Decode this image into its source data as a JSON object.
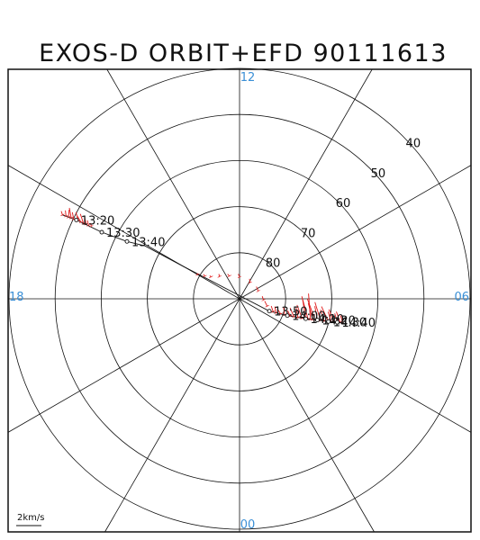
{
  "title": "EXOS-D ORBIT+EFD 90111613",
  "colors": {
    "frame": "#111111",
    "grid": "#111111",
    "mlt_label": "#3a8fd6",
    "orbit": "#111111",
    "efd_vectors": "#e01818"
  },
  "chart_data": {
    "type": "scatter",
    "title": "EXOS-D ORBIT+EFD 90111613",
    "projection": "polar",
    "radial_quantity": "invariant latitude",
    "radial_range": [
      40,
      90
    ],
    "latitude_circles": [
      40,
      50,
      60,
      70,
      80
    ],
    "latitude_labels": [
      "40",
      "50",
      "60",
      "70",
      "80"
    ],
    "mlt_labels": [
      {
        "text": "12",
        "mlt": 12
      },
      {
        "text": "06",
        "mlt": 6
      },
      {
        "text": "00",
        "mlt": 0
      },
      {
        "text": "18",
        "mlt": 18
      }
    ],
    "grid_spokes_mlt": [
      0,
      2,
      4,
      6,
      8,
      10,
      12,
      14,
      16,
      18,
      20,
      22
    ],
    "scale_label": "2km/s",
    "scale_value": 2,
    "orbit": [
      {
        "mlt": 16.31,
        "lat": 47.5
      },
      {
        "mlt": 16.28,
        "lat": 50.7
      },
      {
        "mlt": 16.28,
        "lat": 56.8
      },
      {
        "mlt": 16.2,
        "lat": 62.6
      },
      {
        "mlt": 16.05,
        "lat": 66.5
      },
      {
        "mlt": 16.0,
        "lat": 76.0
      },
      {
        "mlt": 4.5,
        "lat": 83.0
      },
      {
        "mlt": 4.71,
        "lat": 79.0
      },
      {
        "mlt": 4.88,
        "lat": 75.0
      },
      {
        "mlt": 4.98,
        "lat": 72.5
      },
      {
        "mlt": 5.04,
        "lat": 70.1
      },
      {
        "mlt": 5.1,
        "lat": 68.2
      },
      {
        "mlt": 5.15,
        "lat": 67.0
      }
    ],
    "time_marks": [
      {
        "label": "13:20",
        "mlt": 16.28,
        "lat": 50.7
      },
      {
        "label": "13:30",
        "mlt": 16.28,
        "lat": 56.8
      },
      {
        "label": "13:40",
        "mlt": 16.2,
        "lat": 62.6
      },
      {
        "label": "13:50",
        "mlt": 4.5,
        "lat": 83.0
      },
      {
        "label": "14:00",
        "mlt": 4.71,
        "lat": 79.0
      },
      {
        "label": "14:10",
        "mlt": 4.88,
        "lat": 75.0
      },
      {
        "label": "14:20",
        "mlt": 4.98,
        "lat": 72.5
      },
      {
        "label": "14:30",
        "mlt": 5.04,
        "lat": 70.1
      },
      {
        "label": "14:40",
        "mlt": 5.1,
        "lat": 68.2
      }
    ],
    "efd_vectors": [
      {
        "mlt": 16.31,
        "lat": 47.5,
        "east": 0.2,
        "north": 0.6
      },
      {
        "mlt": 16.3,
        "lat": 48.3,
        "east": 0.1,
        "north": 0.9
      },
      {
        "mlt": 16.3,
        "lat": 48.9,
        "east": -0.1,
        "north": 1.2
      },
      {
        "mlt": 16.29,
        "lat": 49.5,
        "east": 0.3,
        "north": 1.6
      },
      {
        "mlt": 16.29,
        "lat": 50.1,
        "east": 0.2,
        "north": 1.1
      },
      {
        "mlt": 16.28,
        "lat": 51.2,
        "east": 0.4,
        "north": 1.4
      },
      {
        "mlt": 16.28,
        "lat": 51.8,
        "east": 0.6,
        "north": 1.0
      },
      {
        "mlt": 16.28,
        "lat": 52.4,
        "east": 0.5,
        "north": 1.5
      },
      {
        "mlt": 16.27,
        "lat": 53.0,
        "east": 0.3,
        "north": 1.3
      },
      {
        "mlt": 16.27,
        "lat": 53.6,
        "east": 0.2,
        "north": 0.8
      },
      {
        "mlt": 16.26,
        "lat": 54.2,
        "east": 0.1,
        "north": 0.5
      },
      {
        "mlt": 16.0,
        "lat": 79.5,
        "east": 0.1,
        "north": 0.2
      },
      {
        "mlt": 15.8,
        "lat": 81.0,
        "east": 0.2,
        "north": 0.3
      },
      {
        "mlt": 15.5,
        "lat": 82.2,
        "east": 0.2,
        "north": 0.2
      },
      {
        "mlt": 14.8,
        "lat": 83.5,
        "east": 0.1,
        "north": 0.4
      },
      {
        "mlt": 13.6,
        "lat": 84.6,
        "east": 0.3,
        "north": 0.3
      },
      {
        "mlt": 12.0,
        "lat": 85.3,
        "east": 0.2,
        "north": 0.5
      },
      {
        "mlt": 9.8,
        "lat": 85.8,
        "east": 0.1,
        "north": 0.6
      },
      {
        "mlt": 7.5,
        "lat": 85.6,
        "east": 0.3,
        "north": 0.7
      },
      {
        "mlt": 5.8,
        "lat": 84.8,
        "east": 0.2,
        "north": 0.6
      },
      {
        "mlt": 5.0,
        "lat": 83.8,
        "east": 0.4,
        "north": 0.8
      },
      {
        "mlt": 4.6,
        "lat": 82.2,
        "east": 0.3,
        "north": 0.9
      },
      {
        "mlt": 4.6,
        "lat": 81.5,
        "east": 0.2,
        "north": 1.0
      },
      {
        "mlt": 4.65,
        "lat": 80.5,
        "east": 0.5,
        "north": 0.8
      },
      {
        "mlt": 4.7,
        "lat": 79.6,
        "east": 0.2,
        "north": 1.2
      },
      {
        "mlt": 4.74,
        "lat": 78.4,
        "east": 0.4,
        "north": 0.9
      },
      {
        "mlt": 4.78,
        "lat": 77.6,
        "east": 0.6,
        "north": 1.4
      },
      {
        "mlt": 4.82,
        "lat": 76.7,
        "east": 0.3,
        "north": 1.6
      },
      {
        "mlt": 4.85,
        "lat": 75.8,
        "east": 0.8,
        "north": 2.1
      },
      {
        "mlt": 4.88,
        "lat": 75.0,
        "east": 0.5,
        "north": 3.1
      },
      {
        "mlt": 4.9,
        "lat": 74.5,
        "east": 1.0,
        "north": 3.6
      },
      {
        "mlt": 4.92,
        "lat": 74.0,
        "east": 0.3,
        "north": 4.1
      },
      {
        "mlt": 4.94,
        "lat": 73.5,
        "east": 0.7,
        "north": 2.6
      },
      {
        "mlt": 4.96,
        "lat": 73.0,
        "east": 1.2,
        "north": 3.3
      },
      {
        "mlt": 4.98,
        "lat": 72.5,
        "east": 0.4,
        "north": 2.2
      },
      {
        "mlt": 5.0,
        "lat": 71.8,
        "east": 0.9,
        "north": 2.9
      },
      {
        "mlt": 5.02,
        "lat": 71.0,
        "east": 0.6,
        "north": 1.8
      },
      {
        "mlt": 5.04,
        "lat": 70.1,
        "east": 1.1,
        "north": 2.4
      },
      {
        "mlt": 5.06,
        "lat": 69.5,
        "east": 0.5,
        "north": 1.6
      },
      {
        "mlt": 5.08,
        "lat": 68.9,
        "east": 0.8,
        "north": 2.0
      },
      {
        "mlt": 5.1,
        "lat": 68.2,
        "east": 0.4,
        "north": 1.4
      },
      {
        "mlt": 5.12,
        "lat": 67.6,
        "east": 0.6,
        "north": 1.7
      },
      {
        "mlt": 5.14,
        "lat": 67.1,
        "east": 0.3,
        "north": 1.1
      }
    ]
  }
}
